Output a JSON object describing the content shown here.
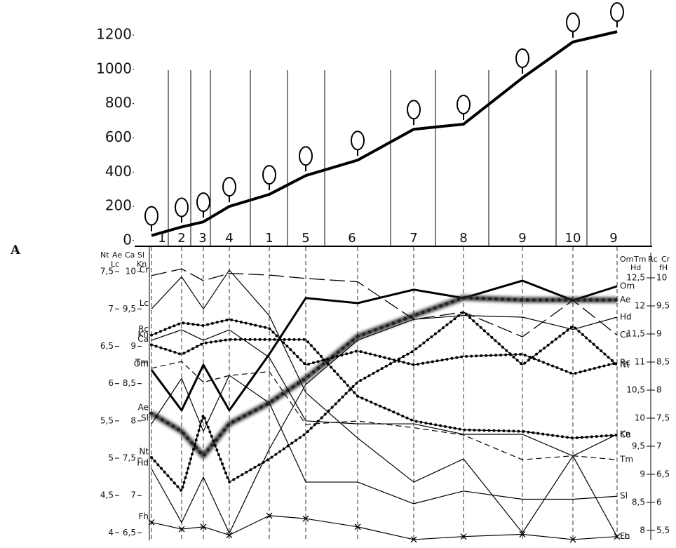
{
  "panel_label": "A",
  "chart_data": {
    "type": "line",
    "profile": {
      "ylim": [
        0,
        1200
      ],
      "yticks": [
        0,
        200,
        400,
        600,
        800,
        1000,
        1200
      ],
      "values": [
        30,
        80,
        110,
        200,
        270,
        380,
        470,
        650,
        680,
        950,
        1160,
        1220
      ]
    },
    "zones": [
      "1",
      "2",
      "3",
      "4",
      "1",
      "5",
      "6",
      "7",
      "8",
      "9",
      "10",
      "9"
    ],
    "axis_headers": [
      "Nt",
      "Ae",
      "Ca",
      "Sl",
      "Lc",
      "Kn",
      "Om",
      "Tm",
      "Rc",
      "Cr",
      "Hd",
      "fH"
    ],
    "y_axes": [
      {
        "ylim": [
          3.9,
          7.83
        ],
        "yticks": [
          4,
          {
            "value": 4.5,
            "label": "4,5"
          },
          5,
          {
            "value": 5.5,
            "label": "5,5"
          },
          6,
          {
            "value": 6.5,
            "label": "6,5"
          },
          7,
          {
            "value": 7.5,
            "label": "7,5"
          }
        ]
      },
      {
        "ylim": [
          6.4,
          10.33
        ],
        "yticks": [
          {
            "value": 6.5,
            "label": "6,5"
          },
          7,
          {
            "value": 7.5,
            "label": "7,5"
          },
          8,
          {
            "value": 8.5,
            "label": "8,5"
          },
          9,
          {
            "value": 9.5,
            "label": "9,5"
          },
          10
        ]
      },
      {
        "ylim": [
          7.825,
          13.05
        ],
        "yticks": [
          8,
          {
            "value": 8.5,
            "label": "8,5"
          },
          9,
          {
            "value": 9.5,
            "label": "9,5"
          },
          10,
          {
            "value": 10.5,
            "label": "10,5"
          },
          11,
          {
            "value": 11.5,
            "label": "11,5"
          },
          12,
          {
            "value": 12.5,
            "label": "12,5"
          }
        ]
      },
      {
        "ylim": [
          5.325,
          10.55
        ],
        "yticks": [
          {
            "value": 5.5,
            "label": "5,5"
          },
          6,
          {
            "value": 6.5,
            "label": "6,5"
          },
          7,
          {
            "value": 7.5,
            "label": "7,5"
          },
          8,
          {
            "value": 8.5,
            "label": "8,5"
          },
          9,
          {
            "value": 9.5,
            "label": "9,5"
          },
          10
        ]
      }
    ],
    "series": [
      {
        "name": "Om",
        "axis": 2,
        "style": "thick",
        "color": "#000000",
        "values": [
          10.86,
          10.14,
          10.95,
          10.14,
          11.14,
          12.14,
          12.05,
          12.29,
          12.14,
          12.45,
          12.1,
          12.35
        ]
      },
      {
        "name": "Ae",
        "axis": 0,
        "style": "blur",
        "color": "#222222",
        "values": [
          5.6,
          5.36,
          5.03,
          5.46,
          5.74,
          6.07,
          6.63,
          6.91,
          7.15,
          7.12,
          7.12,
          7.12
        ]
      },
      {
        "name": "Cr",
        "axis": 3,
        "style": "dash",
        "color": "#000000",
        "values": [
          10.04,
          10.16,
          9.95,
          10.08,
          10.05,
          9.99,
          9.93,
          9.26,
          9.39,
          8.95,
          9.6,
          8.98
        ]
      },
      {
        "name": "Rc",
        "axis": 3,
        "style": "dots",
        "color": "#000000",
        "values": [
          8.98,
          9.2,
          9.15,
          9.26,
          9.1,
          8.45,
          8.7,
          8.45,
          8.6,
          8.64,
          8.29,
          8.49
        ]
      },
      {
        "name": "Ca",
        "axis": 0,
        "style": "dots",
        "color": "#000000",
        "values": [
          6.52,
          6.39,
          6.54,
          6.59,
          6.59,
          6.59,
          5.83,
          5.5,
          5.38,
          5.36,
          5.27,
          5.31
        ]
      },
      {
        "name": "Nt",
        "axis": 0,
        "style": "dots",
        "color": "#000000",
        "values": [
          5.01,
          4.56,
          5.58,
          4.68,
          4.99,
          5.33,
          6.02,
          6.44,
          6.96,
          6.25,
          6.77,
          6.25
        ]
      },
      {
        "name": "Kn",
        "axis": 0,
        "style": "solid",
        "color": "#000000",
        "values": [
          6.58,
          6.72,
          6.58,
          6.72,
          6.35,
          5.5,
          5.46,
          5.46,
          5.32,
          5.32,
          5.03,
          5.32
        ]
      },
      {
        "name": "Tm",
        "axis": 2,
        "style": "shortdash",
        "color": "#000000",
        "values": [
          10.89,
          11.01,
          10.64,
          10.76,
          10.83,
          9.89,
          9.95,
          9.83,
          9.7,
          9.26,
          9.33,
          9.26
        ]
      },
      {
        "name": "Sl",
        "axis": 0,
        "style": "solid",
        "color": "#000000",
        "values": [
          5.46,
          6.07,
          5.36,
          6.11,
          5.74,
          4.68,
          4.68,
          4.39,
          4.56,
          4.45,
          4.45,
          4.49
        ]
      },
      {
        "name": "Hd",
        "axis": 2,
        "style": "solid",
        "color": "#000000",
        "values": [
          9.1,
          8.14,
          8.95,
          7.95,
          9.45,
          10.6,
          11.39,
          11.76,
          11.83,
          11.8,
          11.58,
          11.8
        ]
      },
      {
        "name": "Lc",
        "axis": 1,
        "style": "solid",
        "color": "#000000",
        "values": [
          9.5,
          9.93,
          9.5,
          10.02,
          9.41,
          8.38,
          7.77,
          7.18,
          7.49,
          6.5,
          7.53,
          6.45
        ]
      },
      {
        "name": "Fh",
        "axis": 0,
        "style": "cross",
        "color": "#000000",
        "values": [
          4.14,
          4.05,
          4.08,
          3.97,
          4.23,
          4.19,
          4.08,
          3.91,
          3.95,
          3.98,
          3.91,
          3.95
        ]
      }
    ]
  }
}
